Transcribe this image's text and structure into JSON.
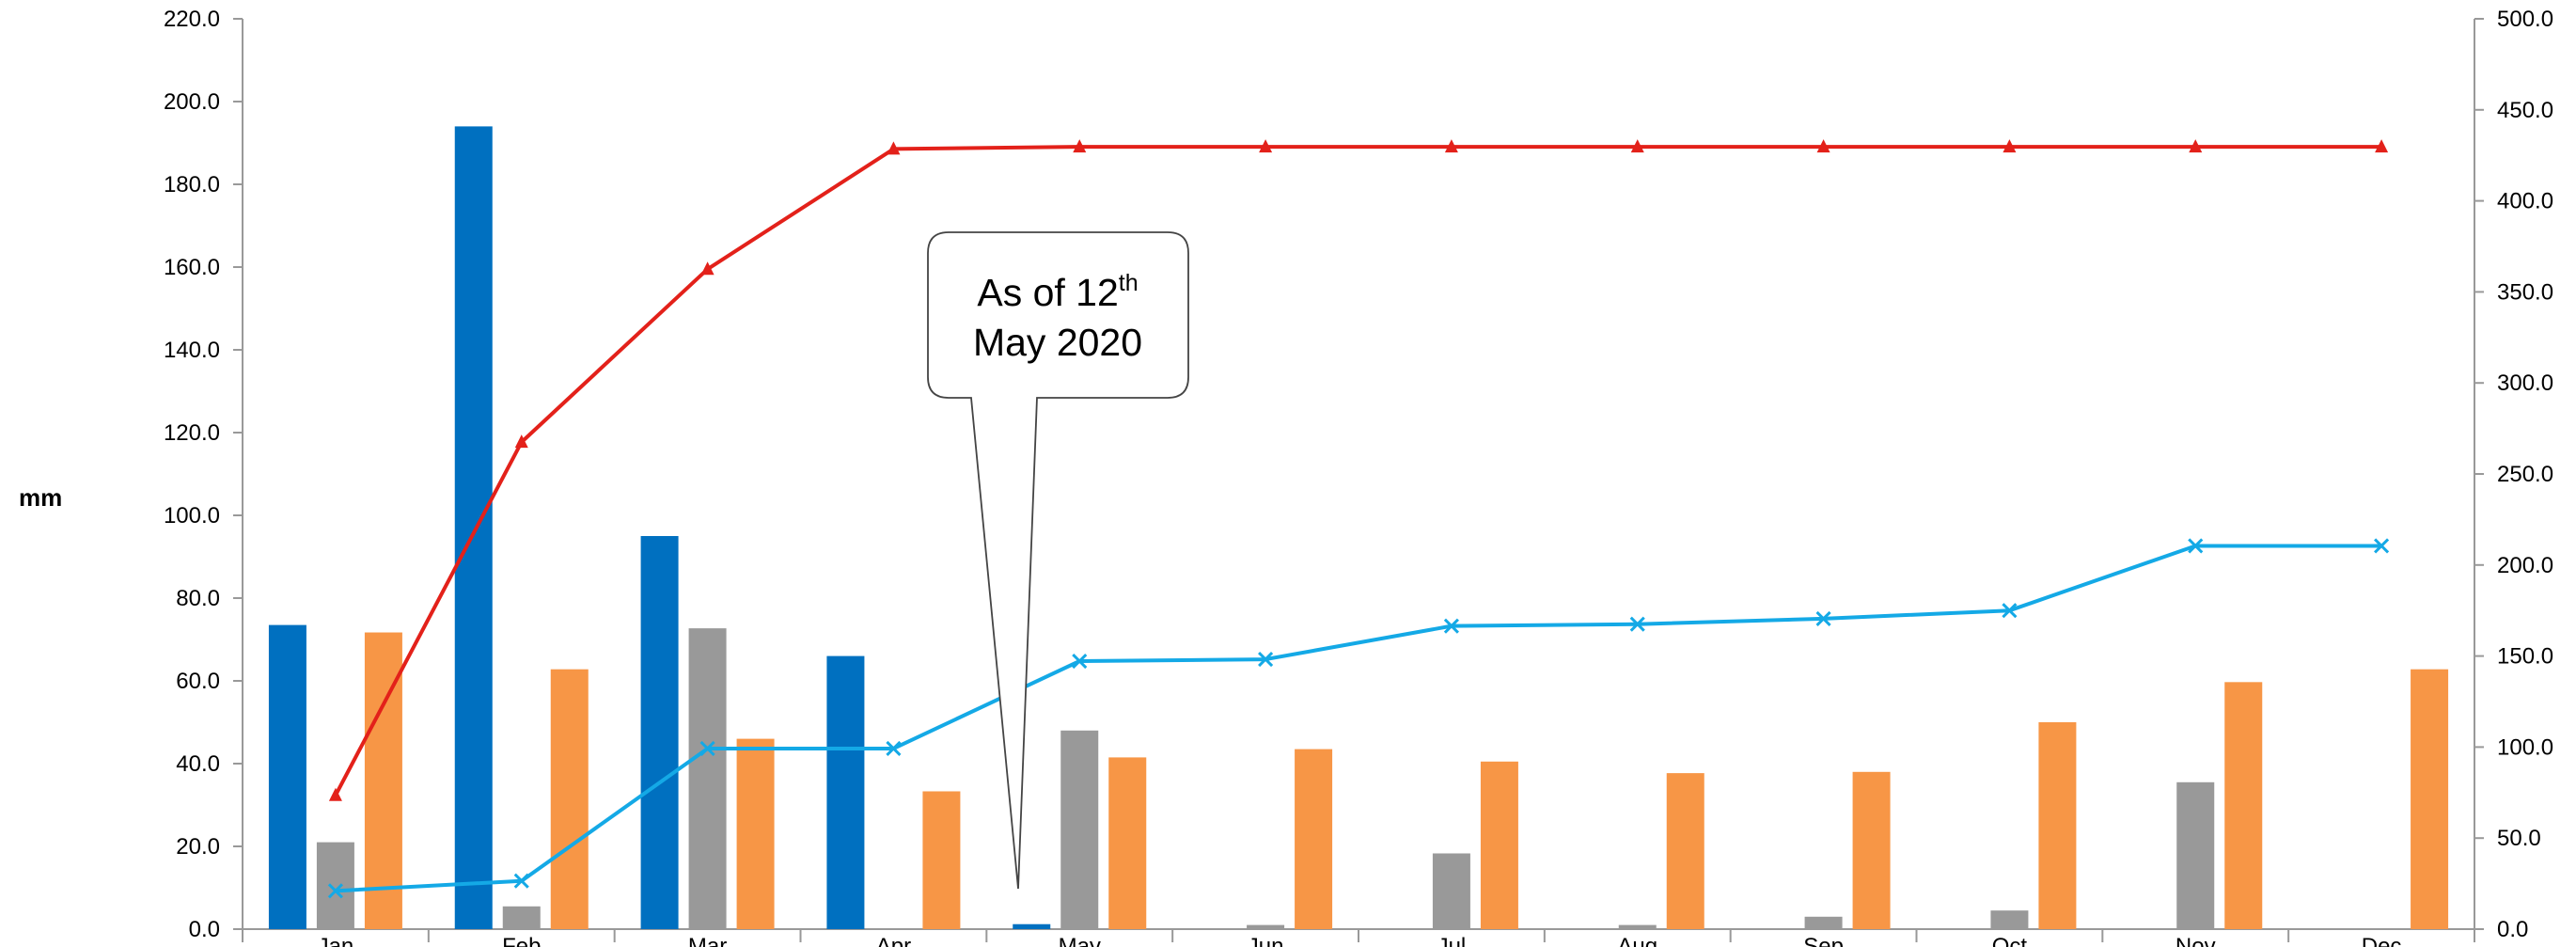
{
  "chart_data": {
    "type": "bar",
    "categories": [
      "Jan",
      "Feb",
      "Mar",
      "Apr",
      "May",
      "Jun",
      "Jul",
      "Aug",
      "Sep",
      "Oct",
      "Nov",
      "Dec"
    ],
    "ylabel": "mm",
    "ylim": [
      0,
      220
    ],
    "y2lim": [
      0,
      500
    ],
    "yticks": [
      "0.0",
      "20.0",
      "40.0",
      "60.0",
      "80.0",
      "100.0",
      "120.0",
      "140.0",
      "160.0",
      "180.0",
      "200.0",
      "220.0"
    ],
    "y2ticks": [
      "0.0",
      "50.0",
      "100.0",
      "150.0",
      "200.0",
      "250.0",
      "300.0",
      "350.0",
      "400.0",
      "450.0",
      "500.0"
    ],
    "grid": false,
    "legend": "none",
    "series": [
      {
        "kind": "bar",
        "axis": "left",
        "color": "#0070C0",
        "values": [
          73.5,
          194.0,
          95.0,
          66.0,
          1.2,
          null,
          null,
          null,
          null,
          null,
          null,
          null
        ]
      },
      {
        "kind": "bar",
        "axis": "left",
        "color": "#999999",
        "values": [
          21.0,
          5.5,
          72.7,
          0,
          48.0,
          1.0,
          18.3,
          1.0,
          3.0,
          4.5,
          35.5,
          0
        ]
      },
      {
        "kind": "bar",
        "axis": "left",
        "color": "#F79646",
        "values": [
          71.7,
          62.8,
          46.0,
          33.3,
          41.5,
          43.5,
          40.5,
          37.7,
          38.0,
          50.0,
          59.7,
          62.8
        ]
      },
      {
        "kind": "line",
        "axis": "right",
        "color": "#E3211A",
        "marker": "triangle",
        "values": [
          73.5,
          267.5,
          362.5,
          428.5,
          429.7,
          429.7,
          429.7,
          429.7,
          429.7,
          429.7,
          429.7,
          429.7
        ]
      },
      {
        "kind": "line",
        "axis": "right",
        "color": "#14A9E6",
        "marker": "x",
        "values": [
          21.0,
          26.5,
          99.2,
          99.2,
          147.2,
          148.2,
          166.5,
          167.5,
          170.5,
          175.0,
          210.5,
          210.5
        ]
      }
    ],
    "annotations": [
      {
        "text_main": "As of 12",
        "superscript": "th",
        "line2": "May 2020",
        "points_to": "May"
      }
    ]
  }
}
